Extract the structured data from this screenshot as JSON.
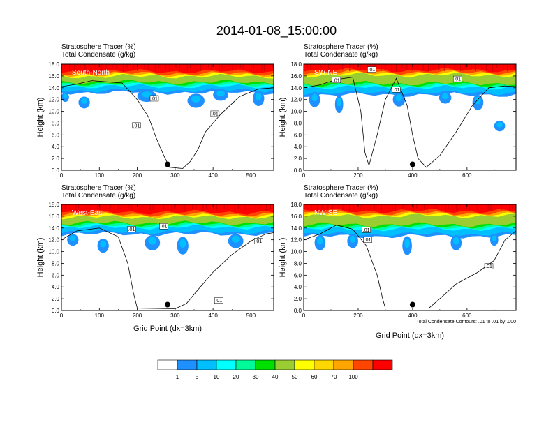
{
  "figure": {
    "title": "2014-01-08_15:00:00",
    "contour_note": "Total Condensate Contours: .01 to .01 by .000"
  },
  "colorbar": {
    "labels": [
      "1",
      "5",
      "10",
      "20",
      "30",
      "40",
      "50",
      "60",
      "70",
      "100"
    ],
    "colors": [
      "#ffffff",
      "#1e90ff",
      "#00bfff",
      "#00ffff",
      "#00fa9a",
      "#00e000",
      "#9acd32",
      "#ffff00",
      "#ffd700",
      "#ffa500",
      "#ff4500",
      "#ff0000"
    ]
  },
  "chart_data": [
    {
      "type": "heatmap",
      "panel": "top-left",
      "title_line1": "Stratosphere Tracer   (%)",
      "title_line2": "Total Condensate   (g/kg)",
      "cross_section": "South-North",
      "ylabel": "Height (km)",
      "xlabel": "",
      "xlim": [
        0,
        560
      ],
      "ylim": [
        0,
        18
      ],
      "xticks": [
        "0",
        "100",
        "200",
        "300",
        "400",
        "500"
      ],
      "yticks": [
        "0.0",
        "2.0",
        "4.0",
        "6.0",
        "8.0",
        "10.0",
        "12.0",
        "14.0",
        "16.0",
        "18.0"
      ],
      "marker_x": 280,
      "contour_label": ".01",
      "layer": {
        "top": 18.0,
        "red_base": 16.3,
        "green_base": 14.6,
        "blue_base": 13.2
      },
      "blobs": [
        [
          10,
          12.4,
          20,
          0.8
        ],
        [
          60,
          11.5,
          30,
          1.0
        ],
        [
          225,
          12.6,
          50,
          1.0
        ],
        [
          355,
          11.8,
          45,
          1.2
        ],
        [
          420,
          12.8,
          40,
          1.0
        ],
        [
          520,
          12.2,
          30,
          1.3
        ]
      ],
      "contour": [
        [
          0,
          14.2
        ],
        [
          40,
          14.6
        ],
        [
          80,
          15.2
        ],
        [
          120,
          15.0
        ],
        [
          160,
          14.8
        ],
        [
          200,
          12.0
        ],
        [
          230,
          9.0
        ],
        [
          250,
          5.5
        ],
        [
          270,
          2.5
        ],
        [
          285,
          0.5
        ],
        [
          320,
          0.3
        ],
        [
          340,
          1.5
        ],
        [
          360,
          3.5
        ],
        [
          380,
          6.5
        ],
        [
          420,
          9.5
        ],
        [
          470,
          12.5
        ],
        [
          520,
          13.8
        ],
        [
          560,
          14.0
        ]
      ],
      "contour_label_pts": [
        [
          245,
          12.2
        ],
        [
          198,
          7.6
        ],
        [
          405,
          9.6
        ]
      ],
      "extra_blobs": []
    },
    {
      "type": "heatmap",
      "panel": "top-right",
      "title_line1": "Stratosphere Tracer   (%)",
      "title_line2": "Total Condensate   (g/kg)",
      "cross_section": "SW-NE",
      "ylabel": "Height (km)",
      "xlabel": "",
      "xlim": [
        0,
        780
      ],
      "ylim": [
        0,
        18
      ],
      "xticks": [
        "0",
        "200",
        "400",
        "600"
      ],
      "yticks": [
        "0.0",
        "2.0",
        "4.0",
        "6.0",
        "8.0",
        "10.0",
        "12.0",
        "14.0",
        "16.0",
        "18.0"
      ],
      "marker_x": 400,
      "contour_label": ".01",
      "layer": {
        "top": 18.0,
        "red_base": 16.5,
        "green_base": 14.4,
        "blue_base": 12.8
      },
      "blobs": [
        [
          40,
          12.0,
          40,
          1.3
        ],
        [
          130,
          11.2,
          30,
          1.5
        ],
        [
          350,
          12.0,
          45,
          1.2
        ],
        [
          520,
          12.3,
          45,
          1.0
        ],
        [
          640,
          11.5,
          40,
          1.3
        ]
      ],
      "contour": [
        [
          0,
          14.0
        ],
        [
          60,
          14.5
        ],
        [
          120,
          15.4
        ],
        [
          180,
          15.8
        ],
        [
          210,
          10.0
        ],
        [
          225,
          3.0
        ],
        [
          240,
          0.8
        ],
        [
          270,
          6.0
        ],
        [
          300,
          12.0
        ],
        [
          340,
          15.6
        ],
        [
          380,
          11.0
        ],
        [
          400,
          6.0
        ],
        [
          420,
          2.0
        ],
        [
          450,
          0.5
        ],
        [
          500,
          2.5
        ],
        [
          560,
          6.5
        ],
        [
          620,
          11.0
        ],
        [
          680,
          14.0
        ],
        [
          740,
          14.3
        ],
        [
          780,
          14.2
        ]
      ],
      "contour_label_pts": [
        [
          120,
          15.3
        ],
        [
          250,
          17.1
        ],
        [
          340,
          13.7
        ],
        [
          565,
          15.5
        ]
      ],
      "extra_blobs": [
        [
          720,
          7.5,
          40,
          0.9
        ]
      ]
    },
    {
      "type": "heatmap",
      "panel": "bottom-left",
      "title_line1": "Stratosphere Tracer   (%)",
      "title_line2": "Total Condensate   (g/kg)",
      "cross_section": "West-East",
      "ylabel": "Height (km)",
      "xlabel": "Grid Point (dx=3km)",
      "xlim": [
        0,
        560
      ],
      "ylim": [
        0,
        18
      ],
      "xticks": [
        "0",
        "100",
        "200",
        "300",
        "400",
        "500"
      ],
      "yticks": [
        "0.0",
        "2.0",
        "4.0",
        "6.0",
        "8.0",
        "10.0",
        "12.0",
        "14.0",
        "16.0",
        "18.0"
      ],
      "marker_x": 280,
      "contour_label": ".01",
      "layer": {
        "top": 18.0,
        "red_base": 16.2,
        "green_base": 14.5,
        "blue_base": 13.0
      },
      "blobs": [
        [
          30,
          12.0,
          30,
          1.0
        ],
        [
          110,
          11.0,
          30,
          1.2
        ],
        [
          240,
          11.5,
          40,
          1.3
        ],
        [
          320,
          11.0,
          30,
          1.5
        ],
        [
          460,
          11.8,
          40,
          1.2
        ]
      ],
      "contour": [
        [
          0,
          12.0
        ],
        [
          40,
          13.5
        ],
        [
          100,
          14.0
        ],
        [
          150,
          12.5
        ],
        [
          175,
          8.0
        ],
        [
          190,
          3.0
        ],
        [
          200,
          0.4
        ],
        [
          300,
          0.3
        ],
        [
          330,
          1.2
        ],
        [
          360,
          3.5
        ],
        [
          400,
          6.5
        ],
        [
          450,
          9.5
        ],
        [
          500,
          11.8
        ],
        [
          540,
          13.0
        ],
        [
          560,
          13.2
        ]
      ],
      "contour_label_pts": [
        [
          185,
          13.8
        ],
        [
          270,
          14.3
        ],
        [
          415,
          1.7
        ],
        [
          520,
          11.8
        ]
      ],
      "extra_blobs": []
    },
    {
      "type": "heatmap",
      "panel": "bottom-right",
      "title_line1": "Stratosphere Tracer   (%)",
      "title_line2": "Total Condensate   (g/kg)",
      "cross_section": "NW-SE",
      "ylabel": "Height (km)",
      "xlabel": "Grid Point (dx=3km)",
      "xlim": [
        0,
        780
      ],
      "ylim": [
        0,
        18
      ],
      "xticks": [
        "0",
        "200",
        "400",
        "600"
      ],
      "yticks": [
        "0.0",
        "2.0",
        "4.0",
        "6.0",
        "8.0",
        "10.0",
        "12.0",
        "14.0",
        "16.0",
        "18.0"
      ],
      "marker_x": 400,
      "contour_label": ".01",
      "layer": {
        "top": 18.0,
        "red_base": 16.4,
        "green_base": 14.2,
        "blue_base": 12.6
      },
      "blobs": [
        [
          60,
          11.5,
          40,
          1.3
        ],
        [
          180,
          11.8,
          40,
          1.2
        ],
        [
          380,
          11.0,
          35,
          1.6
        ],
        [
          560,
          11.5,
          40,
          1.3
        ],
        [
          700,
          12.0,
          30,
          1.0
        ]
      ],
      "contour": [
        [
          0,
          12.0
        ],
        [
          60,
          13.0
        ],
        [
          120,
          14.5
        ],
        [
          180,
          13.8
        ],
        [
          230,
          11.0
        ],
        [
          270,
          6.0
        ],
        [
          290,
          2.0
        ],
        [
          300,
          0.4
        ],
        [
          460,
          0.4
        ],
        [
          500,
          2.0
        ],
        [
          560,
          4.5
        ],
        [
          640,
          6.5
        ],
        [
          700,
          8.5
        ],
        [
          740,
          12.0
        ],
        [
          780,
          13.5
        ]
      ],
      "contour_label_pts": [
        [
          230,
          13.7
        ],
        [
          235,
          12.0
        ],
        [
          680,
          7.5
        ]
      ],
      "extra_blobs": []
    }
  ]
}
